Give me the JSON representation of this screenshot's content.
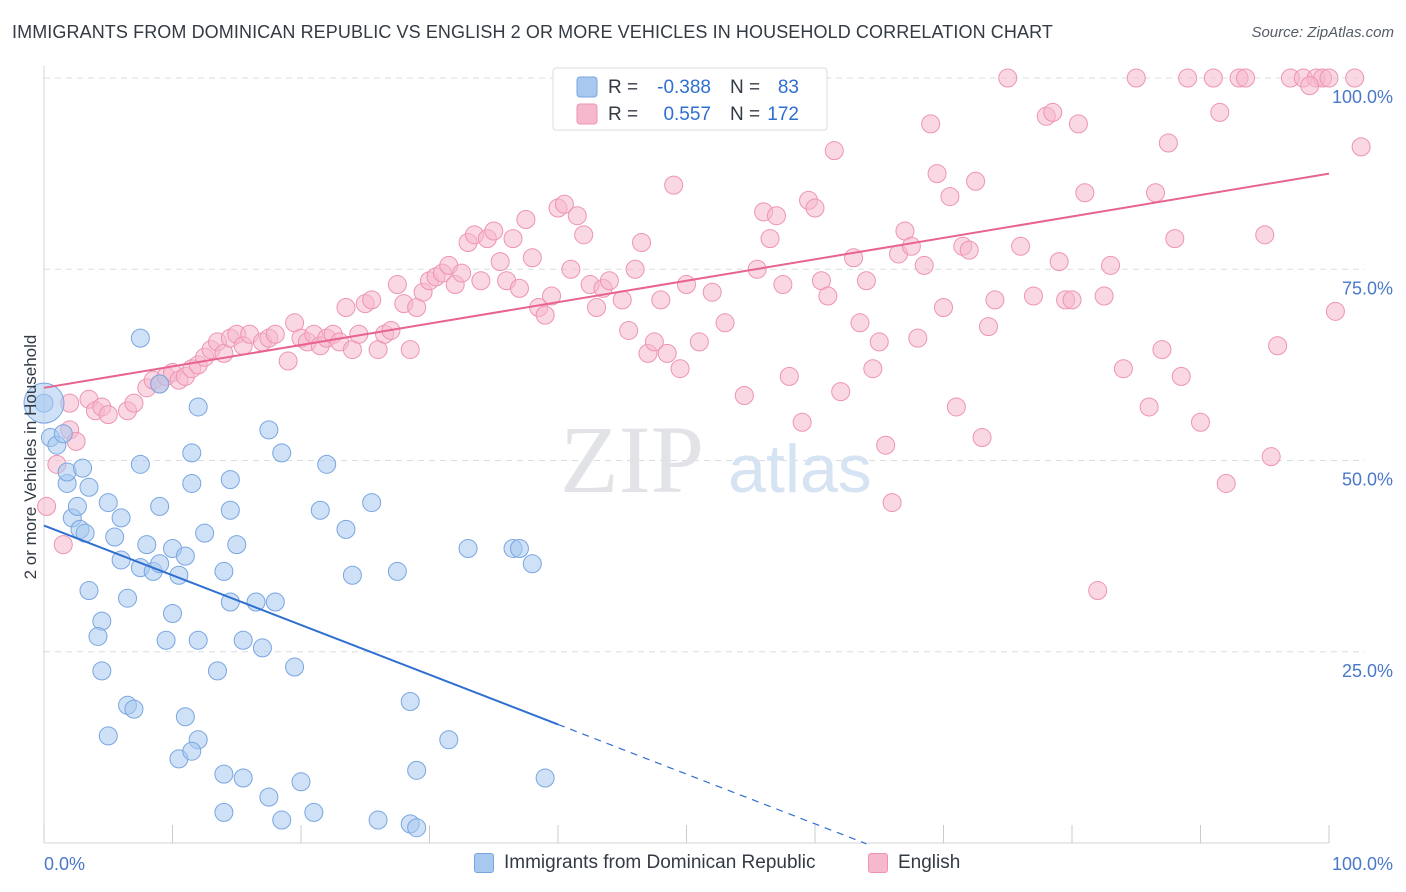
{
  "title": "IMMIGRANTS FROM DOMINICAN REPUBLIC VS ENGLISH 2 OR MORE VEHICLES IN HOUSEHOLD CORRELATION CHART",
  "source": "Source: ZipAtlas.com",
  "watermark": {
    "zip": "ZIP",
    "atlas": "atlas"
  },
  "colors": {
    "blue_fill": "#a8c8f0",
    "blue_stroke": "#7aa6e0",
    "blue_line": "#2f6fd0",
    "pink_fill": "#f5b8cc",
    "pink_stroke": "#ee94b2",
    "pink_line": "#e8638f",
    "grid": "#d9dde3",
    "axis_text": "#4a78c9"
  },
  "legend_top": [
    {
      "r_label": "R =",
      "r_value": "-0.388",
      "n_label": "N =",
      "n_value": "83"
    },
    {
      "r_label": "R =",
      "r_value": "0.557",
      "n_label": "N =",
      "n_value": "172"
    }
  ],
  "legend_bottom": [
    "Immigrants from Dominican Republic",
    "English"
  ],
  "chart_data": {
    "type": "scatter",
    "title": "IMMIGRANTS FROM DOMINICAN REPUBLIC VS ENGLISH 2 OR MORE VEHICLES IN HOUSEHOLD CORRELATION CHART",
    "xlabel": "",
    "ylabel": "2 or more Vehicles in Household",
    "x_tick_labels": [
      "0.0%",
      "100.0%"
    ],
    "y_tick_labels": [
      "25.0%",
      "50.0%",
      "75.0%",
      "100.0%"
    ],
    "xlim": [
      0,
      100
    ],
    "ylim": [
      0,
      100
    ],
    "y_ticks": [
      25,
      50,
      75,
      100
    ],
    "grid": true,
    "legend_position": "top-center",
    "series": [
      {
        "name": "Immigrants from Dominican Republic",
        "color": "#a8c8f0",
        "R": -0.388,
        "N": 83,
        "trend": {
          "x0": 0,
          "y0": 41.5,
          "x1": 40,
          "y1": 15.5,
          "dash_to_x": 64
        },
        "points": [
          [
            0.0,
            57.5
          ],
          [
            0.5,
            53.0
          ],
          [
            1.0,
            52.0
          ],
          [
            1.5,
            53.5
          ],
          [
            1.8,
            47.0
          ],
          [
            1.8,
            48.5
          ],
          [
            3.0,
            49.0
          ],
          [
            3.5,
            46.5
          ],
          [
            2.2,
            42.5
          ],
          [
            2.6,
            44.0
          ],
          [
            2.8,
            41.0
          ],
          [
            3.2,
            40.5
          ],
          [
            5.0,
            44.5
          ],
          [
            5.5,
            40.0
          ],
          [
            6.0,
            42.5
          ],
          [
            7.5,
            49.5
          ],
          [
            8.0,
            39.0
          ],
          [
            7.5,
            36.0
          ],
          [
            6.0,
            37.0
          ],
          [
            3.5,
            33.0
          ],
          [
            4.5,
            29.0
          ],
          [
            4.2,
            27.0
          ],
          [
            6.5,
            32.0
          ],
          [
            8.5,
            35.5
          ],
          [
            9.0,
            36.5
          ],
          [
            10.0,
            38.5
          ],
          [
            10.5,
            35.0
          ],
          [
            11.0,
            37.5
          ],
          [
            10.0,
            30.0
          ],
          [
            9.5,
            26.5
          ],
          [
            12.5,
            40.5
          ],
          [
            14.5,
            43.5
          ],
          [
            14.0,
            35.5
          ],
          [
            15.0,
            39.0
          ],
          [
            14.5,
            47.5
          ],
          [
            11.5,
            47.0
          ],
          [
            9.0,
            44.0
          ],
          [
            12.0,
            26.5
          ],
          [
            13.5,
            22.5
          ],
          [
            15.5,
            26.5
          ],
          [
            14.5,
            31.5
          ],
          [
            16.5,
            31.5
          ],
          [
            17.0,
            25.5
          ],
          [
            18.0,
            31.5
          ],
          [
            4.5,
            22.5
          ],
          [
            6.5,
            18.0
          ],
          [
            7.0,
            17.5
          ],
          [
            5.0,
            14.0
          ],
          [
            11.0,
            16.5
          ],
          [
            12.0,
            13.5
          ],
          [
            10.5,
            11.0
          ],
          [
            11.5,
            12.0
          ],
          [
            14.0,
            9.0
          ],
          [
            15.5,
            8.5
          ],
          [
            17.5,
            6.0
          ],
          [
            14.0,
            4.0
          ],
          [
            18.5,
            3.0
          ],
          [
            21.0,
            4.0
          ],
          [
            20.0,
            8.0
          ],
          [
            19.5,
            23.0
          ],
          [
            23.5,
            41.0
          ],
          [
            21.5,
            43.5
          ],
          [
            24.0,
            35.0
          ],
          [
            22.0,
            49.5
          ],
          [
            18.5,
            51.0
          ],
          [
            17.5,
            54.0
          ],
          [
            11.5,
            51.0
          ],
          [
            12.0,
            57.0
          ],
          [
            9.0,
            60.0
          ],
          [
            7.5,
            66.0
          ],
          [
            25.5,
            44.5
          ],
          [
            27.5,
            35.5
          ],
          [
            28.5,
            18.5
          ],
          [
            29.0,
            9.5
          ],
          [
            26.0,
            3.0
          ],
          [
            28.5,
            2.5
          ],
          [
            31.5,
            13.5
          ],
          [
            29.0,
            2.0
          ],
          [
            33.0,
            38.5
          ],
          [
            36.5,
            38.5
          ],
          [
            37.0,
            38.5
          ],
          [
            38.0,
            36.5
          ],
          [
            39.0,
            8.5
          ]
        ]
      },
      {
        "name": "English",
        "color": "#f5b8cc",
        "R": 0.557,
        "N": 172,
        "trend": {
          "x0": 0,
          "y0": 59.5,
          "x1": 100,
          "y1": 87.5
        },
        "points": [
          [
            0.2,
            44.0
          ],
          [
            1.0,
            49.5
          ],
          [
            2.0,
            54.0
          ],
          [
            2.5,
            52.5
          ],
          [
            1.5,
            39.0
          ],
          [
            2.0,
            57.5
          ],
          [
            3.5,
            58.0
          ],
          [
            4.0,
            56.5
          ],
          [
            4.5,
            57.0
          ],
          [
            5.0,
            56.0
          ],
          [
            6.5,
            56.5
          ],
          [
            7.0,
            57.5
          ],
          [
            8.0,
            59.5
          ],
          [
            8.5,
            60.5
          ],
          [
            9.0,
            60.0
          ],
          [
            9.5,
            61.0
          ],
          [
            10.0,
            61.5
          ],
          [
            10.5,
            60.5
          ],
          [
            11.0,
            61.0
          ],
          [
            11.5,
            62.0
          ],
          [
            12.0,
            62.5
          ],
          [
            12.5,
            63.5
          ],
          [
            13.0,
            64.5
          ],
          [
            13.5,
            65.5
          ],
          [
            14.0,
            64.0
          ],
          [
            14.5,
            66.0
          ],
          [
            15.0,
            66.5
          ],
          [
            15.5,
            65.0
          ],
          [
            16.0,
            66.5
          ],
          [
            17.0,
            65.5
          ],
          [
            17.5,
            66.0
          ],
          [
            18.0,
            66.5
          ],
          [
            19.0,
            63.0
          ],
          [
            19.5,
            68.0
          ],
          [
            20.0,
            66.0
          ],
          [
            20.5,
            65.5
          ],
          [
            21.0,
            66.5
          ],
          [
            21.5,
            65.0
          ],
          [
            22.0,
            66.0
          ],
          [
            22.5,
            66.5
          ],
          [
            23.0,
            65.5
          ],
          [
            23.5,
            70.0
          ],
          [
            24.0,
            64.5
          ],
          [
            24.5,
            66.5
          ],
          [
            25.0,
            70.5
          ],
          [
            25.5,
            71.0
          ],
          [
            26.0,
            64.5
          ],
          [
            26.5,
            66.5
          ],
          [
            27.0,
            67.0
          ],
          [
            27.5,
            73.0
          ],
          [
            28.0,
            70.5
          ],
          [
            28.5,
            64.5
          ],
          [
            29.0,
            70.0
          ],
          [
            29.5,
            72.0
          ],
          [
            30.0,
            73.5
          ],
          [
            30.5,
            74.0
          ],
          [
            31.0,
            74.5
          ],
          [
            31.5,
            75.5
          ],
          [
            32.0,
            73.0
          ],
          [
            32.5,
            74.5
          ],
          [
            33.0,
            78.5
          ],
          [
            33.5,
            79.5
          ],
          [
            34.0,
            73.5
          ],
          [
            34.5,
            79.0
          ],
          [
            35.0,
            80.0
          ],
          [
            35.5,
            76.0
          ],
          [
            36.0,
            73.5
          ],
          [
            36.5,
            79.0
          ],
          [
            37.0,
            72.5
          ],
          [
            37.5,
            81.5
          ],
          [
            38.0,
            76.5
          ],
          [
            38.5,
            70.0
          ],
          [
            39.0,
            69.0
          ],
          [
            39.5,
            71.5
          ],
          [
            40.0,
            83.0
          ],
          [
            40.5,
            83.5
          ],
          [
            41.0,
            75.0
          ],
          [
            41.5,
            82.0
          ],
          [
            42.0,
            79.5
          ],
          [
            42.5,
            73.0
          ],
          [
            43.0,
            70.0
          ],
          [
            43.5,
            72.5
          ],
          [
            44.0,
            73.5
          ],
          [
            45.0,
            71.0
          ],
          [
            45.5,
            67.0
          ],
          [
            46.0,
            75.0
          ],
          [
            46.5,
            78.5
          ],
          [
            47.0,
            64.0
          ],
          [
            47.5,
            65.5
          ],
          [
            48.0,
            71.0
          ],
          [
            48.5,
            64.0
          ],
          [
            49.0,
            86.0
          ],
          [
            49.5,
            62.0
          ],
          [
            50.0,
            73.0
          ],
          [
            51.0,
            65.5
          ],
          [
            52.0,
            72.0
          ],
          [
            53.0,
            68.0
          ],
          [
            54.5,
            58.5
          ],
          [
            55.5,
            75.0
          ],
          [
            56.0,
            82.5
          ],
          [
            56.5,
            79.0
          ],
          [
            57.0,
            82.0
          ],
          [
            57.5,
            73.0
          ],
          [
            58.0,
            61.0
          ],
          [
            59.0,
            55.0
          ],
          [
            59.5,
            84.0
          ],
          [
            60.0,
            83.0
          ],
          [
            60.5,
            73.5
          ],
          [
            61.0,
            71.5
          ],
          [
            61.5,
            90.5
          ],
          [
            62.0,
            59.0
          ],
          [
            63.0,
            76.5
          ],
          [
            63.5,
            68.0
          ],
          [
            64.0,
            73.5
          ],
          [
            64.5,
            62.0
          ],
          [
            65.0,
            65.5
          ],
          [
            65.5,
            52.0
          ],
          [
            66.0,
            44.5
          ],
          [
            66.5,
            77.0
          ],
          [
            67.0,
            80.0
          ],
          [
            67.5,
            78.0
          ],
          [
            68.0,
            66.0
          ],
          [
            68.5,
            75.5
          ],
          [
            69.0,
            94.0
          ],
          [
            69.5,
            87.5
          ],
          [
            70.0,
            70.0
          ],
          [
            70.5,
            84.5
          ],
          [
            71.0,
            57.0
          ],
          [
            71.5,
            78.0
          ],
          [
            72.0,
            77.5
          ],
          [
            72.5,
            86.5
          ],
          [
            73.0,
            53.0
          ],
          [
            73.5,
            67.5
          ],
          [
            74.0,
            71.0
          ],
          [
            75.0,
            100.0
          ],
          [
            76.0,
            78.0
          ],
          [
            77.0,
            71.5
          ],
          [
            78.0,
            95.0
          ],
          [
            78.5,
            95.5
          ],
          [
            79.0,
            76.0
          ],
          [
            79.5,
            71.0
          ],
          [
            80.0,
            71.0
          ],
          [
            80.5,
            94.0
          ],
          [
            81.0,
            85.0
          ],
          [
            82.0,
            33.0
          ],
          [
            82.5,
            71.5
          ],
          [
            83.0,
            75.5
          ],
          [
            84.0,
            62.0
          ],
          [
            85.0,
            100.0
          ],
          [
            86.0,
            57.0
          ],
          [
            86.5,
            85.0
          ],
          [
            87.0,
            64.5
          ],
          [
            87.5,
            91.5
          ],
          [
            88.0,
            79.0
          ],
          [
            88.5,
            61.0
          ],
          [
            89.0,
            100.0
          ],
          [
            90.0,
            55.0
          ],
          [
            91.0,
            100.0
          ],
          [
            91.5,
            95.5
          ],
          [
            92.0,
            47.0
          ],
          [
            93.0,
            100.0
          ],
          [
            93.5,
            100.0
          ],
          [
            95.0,
            79.5
          ],
          [
            95.5,
            50.5
          ],
          [
            96.0,
            65.0
          ],
          [
            97.0,
            100.0
          ],
          [
            98.0,
            100.0
          ],
          [
            99.0,
            100.0
          ],
          [
            99.5,
            100.0
          ],
          [
            100.0,
            100.0
          ],
          [
            98.5,
            99.0
          ],
          [
            100.5,
            69.5
          ],
          [
            102.0,
            100.0
          ],
          [
            102.5,
            91.0
          ]
        ]
      }
    ]
  }
}
